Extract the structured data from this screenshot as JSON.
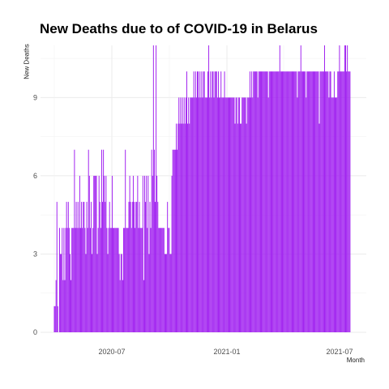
{
  "chart_data": {
    "type": "bar",
    "title": "New Deaths due to of COVID-19 in Belarus",
    "xlabel": "Month",
    "ylabel": "New Deaths",
    "x_tick_labels": [
      "2020-07",
      "2021-01",
      "2021-07"
    ],
    "y_ticks": [
      0,
      3,
      6,
      9
    ],
    "ylim": [
      0,
      11
    ],
    "grid": true,
    "bar_color": "#a020f0",
    "series": [
      {
        "values": [
          1,
          1,
          2,
          5,
          1,
          0,
          4,
          3,
          3,
          4,
          2,
          4,
          2,
          4,
          5,
          4,
          5,
          4,
          3,
          2,
          4,
          4,
          4,
          7,
          4,
          5,
          4,
          5,
          4,
          6,
          4,
          5,
          4,
          5,
          5,
          4,
          3,
          5,
          4,
          7,
          6,
          4,
          5,
          3,
          4,
          6,
          6,
          6,
          6,
          3,
          4,
          6,
          5,
          4,
          7,
          5,
          7,
          6,
          5,
          6,
          4,
          3,
          4,
          5,
          4,
          4,
          6,
          4,
          4,
          4,
          4,
          4,
          4,
          4,
          3,
          2,
          3,
          3,
          2,
          4,
          4,
          7,
          4,
          4,
          4,
          5,
          6,
          5,
          4,
          5,
          6,
          5,
          4,
          5,
          5,
          6,
          4,
          5,
          4,
          4,
          4,
          6,
          2,
          6,
          5,
          6,
          4,
          6,
          3,
          5,
          4,
          7,
          6,
          11,
          7,
          5,
          11,
          6,
          5,
          4,
          4,
          4,
          4,
          4,
          4,
          4,
          3,
          3,
          3,
          5,
          4,
          4,
          3,
          3,
          6,
          7,
          7,
          7,
          7,
          8,
          7,
          8,
          9,
          8,
          9,
          8,
          9,
          8,
          9,
          8,
          9,
          10,
          8,
          9,
          8,
          9,
          9,
          9,
          9,
          10,
          9,
          10,
          9,
          10,
          10,
          9,
          10,
          9,
          10,
          9,
          10,
          10,
          9,
          9,
          9,
          10,
          11,
          9,
          10,
          9,
          10,
          10,
          9,
          10,
          10,
          10,
          9,
          10,
          9,
          9,
          10,
          9,
          9,
          9,
          10,
          9,
          9,
          9,
          9,
          9,
          9,
          9,
          9,
          9,
          9,
          9,
          8,
          9,
          9,
          8,
          9,
          9,
          8,
          8,
          9,
          9,
          9,
          9,
          9,
          8,
          9,
          9,
          9,
          10,
          9,
          10,
          9,
          10,
          10,
          10,
          10,
          10,
          9,
          10,
          10,
          10,
          10,
          10,
          10,
          10,
          10,
          10,
          10,
          10,
          9,
          10,
          10,
          10,
          10,
          10,
          10,
          10,
          10,
          10,
          10,
          10,
          10,
          11,
          10,
          10,
          10,
          10,
          10,
          10,
          10,
          10,
          10,
          10,
          10,
          10,
          10,
          10,
          10,
          10,
          10,
          10,
          10,
          9,
          10,
          10,
          10,
          11,
          10,
          10,
          10,
          10,
          10,
          9,
          10,
          10,
          10,
          10,
          10,
          10,
          10,
          10,
          10,
          10,
          10,
          10,
          10,
          10,
          8,
          10,
          10,
          10,
          10,
          10,
          11,
          10,
          10,
          10,
          10,
          9,
          10,
          10,
          9,
          9,
          9,
          10,
          9,
          9,
          9,
          10,
          10,
          11,
          10,
          10,
          10,
          10,
          10,
          11,
          11,
          10,
          11,
          10,
          10,
          10
        ]
      }
    ]
  }
}
